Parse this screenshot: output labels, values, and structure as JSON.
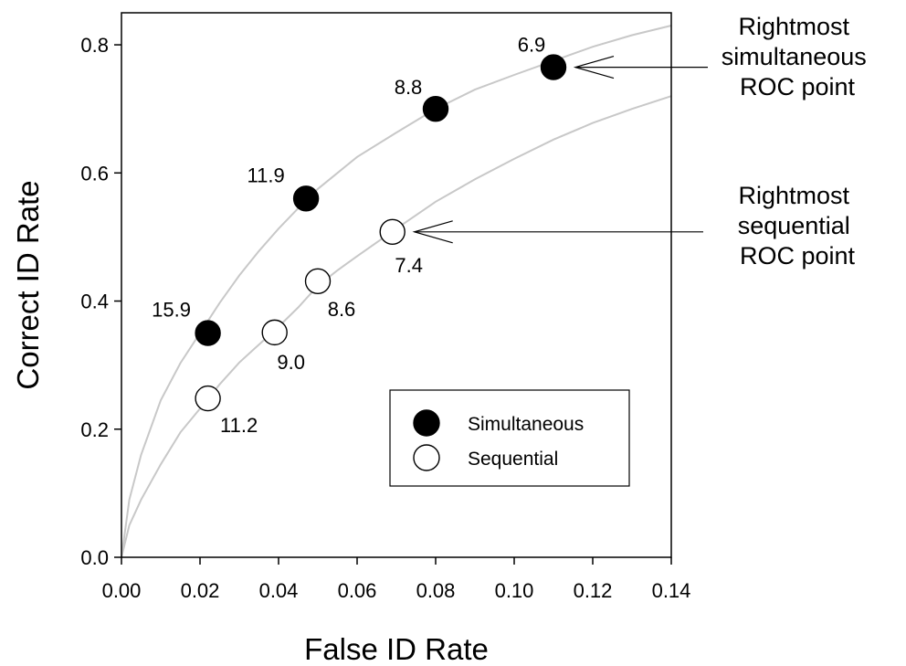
{
  "chart_data": {
    "type": "scatter",
    "xlabel": "False ID Rate",
    "ylabel": "Correct ID Rate",
    "xlim": [
      0,
      0.14
    ],
    "ylim": [
      0,
      0.85
    ],
    "xticks": [
      "0.00",
      "0.02",
      "0.04",
      "0.06",
      "0.08",
      "0.10",
      "0.12",
      "0.14"
    ],
    "yticks": [
      "0.0",
      "0.2",
      "0.4",
      "0.6",
      "0.8"
    ],
    "grid": false,
    "legend_position": "lower-right",
    "series": [
      {
        "name": "Simultaneous",
        "marker": "filled-circle",
        "points": [
          {
            "x": 0.022,
            "y": 0.35,
            "label": "15.9"
          },
          {
            "x": 0.047,
            "y": 0.56,
            "label": "11.9"
          },
          {
            "x": 0.08,
            "y": 0.7,
            "label": "8.8"
          },
          {
            "x": 0.11,
            "y": 0.765,
            "label": "6.9"
          }
        ]
      },
      {
        "name": "Sequential",
        "marker": "open-circle",
        "points": [
          {
            "x": 0.022,
            "y": 0.248,
            "label": "11.2"
          },
          {
            "x": 0.039,
            "y": 0.351,
            "label": "9.0"
          },
          {
            "x": 0.05,
            "y": 0.431,
            "label": "8.6"
          },
          {
            "x": 0.069,
            "y": 0.508,
            "label": "7.4"
          }
        ]
      }
    ],
    "curves": [
      {
        "x": [
          0,
          0.002,
          0.005,
          0.01,
          0.015,
          0.02,
          0.025,
          0.03,
          0.035,
          0.04,
          0.045,
          0.05,
          0.055,
          0.06,
          0.07,
          0.08,
          0.09,
          0.1,
          0.11,
          0.12,
          0.13,
          0.14
        ],
        "y": [
          0,
          0.09,
          0.16,
          0.245,
          0.303,
          0.35,
          0.397,
          0.44,
          0.478,
          0.513,
          0.545,
          0.575,
          0.6,
          0.625,
          0.663,
          0.7,
          0.73,
          0.753,
          0.775,
          0.797,
          0.815,
          0.83
        ]
      },
      {
        "x": [
          0,
          0.002,
          0.005,
          0.01,
          0.015,
          0.02,
          0.025,
          0.03,
          0.035,
          0.04,
          0.045,
          0.05,
          0.055,
          0.06,
          0.07,
          0.08,
          0.09,
          0.1,
          0.11,
          0.12,
          0.13,
          0.14
        ],
        "y": [
          0,
          0.05,
          0.09,
          0.145,
          0.195,
          0.232,
          0.27,
          0.304,
          0.332,
          0.36,
          0.39,
          0.424,
          0.448,
          0.47,
          0.513,
          0.555,
          0.59,
          0.622,
          0.652,
          0.678,
          0.7,
          0.72
        ]
      }
    ],
    "annotations": [
      {
        "lines": [
          "Rightmost",
          "simultaneous",
          "ROC point"
        ],
        "series": 0,
        "point": 3
      },
      {
        "lines": [
          "Rightmost",
          "sequential",
          "ROC point"
        ],
        "series": 1,
        "point": 3
      }
    ]
  }
}
